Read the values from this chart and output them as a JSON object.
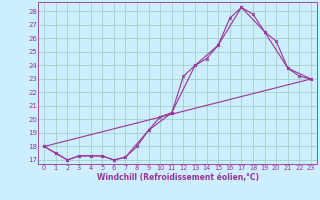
{
  "xlabel": "Windchill (Refroidissement éolien,°C)",
  "bg_color": "#cceeff",
  "grid_color": "#99ccbb",
  "line_color": "#993399",
  "spine_color": "#993399",
  "xlim": [
    -0.5,
    23.5
  ],
  "ylim": [
    16.7,
    28.7
  ],
  "yticks": [
    17,
    18,
    19,
    20,
    21,
    22,
    23,
    24,
    25,
    26,
    27,
    28
  ],
  "xticks": [
    0,
    1,
    2,
    3,
    4,
    5,
    6,
    7,
    8,
    9,
    10,
    11,
    12,
    13,
    14,
    15,
    16,
    17,
    18,
    19,
    20,
    21,
    22,
    23
  ],
  "line1_x": [
    0,
    1,
    2,
    3,
    4,
    5,
    6,
    7,
    8,
    9,
    10,
    11,
    12,
    13,
    14,
    15,
    16,
    17,
    18,
    19,
    20,
    21,
    22,
    23
  ],
  "line1_y": [
    18.0,
    17.5,
    17.0,
    17.3,
    17.3,
    17.3,
    17.0,
    17.2,
    18.0,
    19.2,
    20.2,
    20.5,
    23.2,
    24.0,
    24.5,
    25.5,
    27.5,
    28.3,
    27.8,
    26.5,
    25.8,
    23.8,
    23.2,
    23.0
  ],
  "line2_x": [
    0,
    1,
    2,
    3,
    4,
    5,
    6,
    7,
    9,
    11,
    13,
    15,
    17,
    19,
    21,
    23
  ],
  "line2_y": [
    18.0,
    17.5,
    17.0,
    17.3,
    17.3,
    17.3,
    17.0,
    17.2,
    19.2,
    20.5,
    24.0,
    25.5,
    28.3,
    26.5,
    23.8,
    23.0
  ],
  "line3_x": [
    0,
    23
  ],
  "line3_y": [
    18.0,
    23.0
  ],
  "xlabel_fontsize": 5.5,
  "tick_fontsize": 4.8,
  "ytick_fontsize": 5.0
}
